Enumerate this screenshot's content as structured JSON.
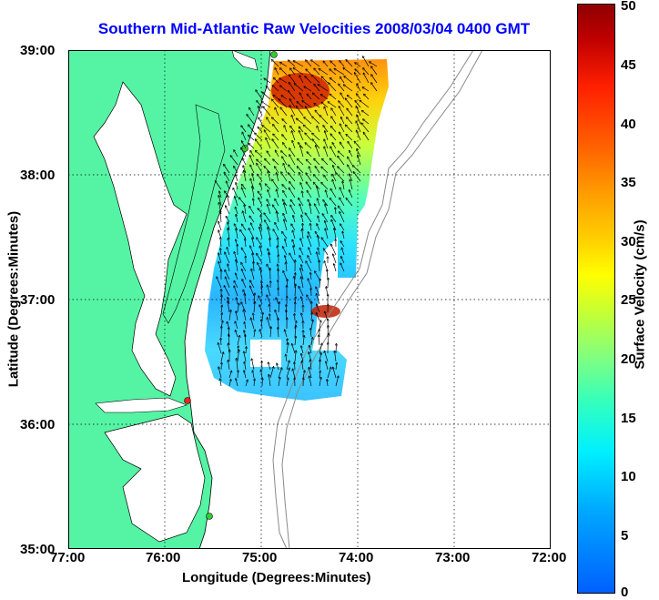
{
  "title": "Southern Mid-Atlantic Raw Velocities 2008/03/04 0400 GMT",
  "x_axis": {
    "label": "Longitude (Degrees:Minutes)",
    "ticks": [
      "77:00",
      "76:00",
      "75:00",
      "74:00",
      "73:00",
      "72:00"
    ]
  },
  "y_axis": {
    "label": "Latitude (Degrees:Minutes)",
    "ticks": [
      "39:00",
      "38:00",
      "37:00",
      "36:00",
      "35:00"
    ]
  },
  "colorbar": {
    "label": "Surface Velocity (cm/s)",
    "ticks": [
      "50",
      "45",
      "40",
      "35",
      "30",
      "25",
      "20",
      "15",
      "10",
      "5",
      "0"
    ],
    "min": 0,
    "max": 50,
    "colormap": "jet"
  },
  "colors": {
    "land": "#55f4a4",
    "water": "#ffffff",
    "title": "#0000ff",
    "bathymetry": "#8a8a8a",
    "station_active": "#33cc33",
    "station_inactive": "#ff2020"
  },
  "stations": [
    {
      "status": "active"
    },
    {
      "status": "active"
    },
    {
      "status": "inactive"
    },
    {
      "status": "active"
    }
  ]
}
